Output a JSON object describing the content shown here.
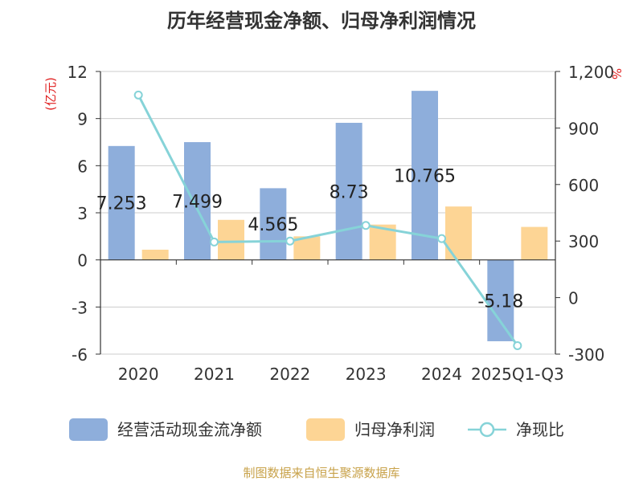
{
  "chart_data": {
    "type": "bar",
    "title": "历年经营现金净额、归母净利润情况",
    "categories": [
      "2020",
      "2021",
      "2022",
      "2023",
      "2024",
      "2025Q1-Q3"
    ],
    "series": [
      {
        "name": "经营活动现金流净额",
        "type": "bar",
        "axis": "left",
        "color": "#8eaedb",
        "values": [
          7.253,
          7.499,
          4.565,
          8.73,
          10.765,
          -5.18
        ],
        "labels": [
          "7.253",
          "7.499",
          "4.565",
          "8.73",
          "10.765",
          "-5.18"
        ]
      },
      {
        "name": "归母净利润",
        "type": "bar",
        "axis": "left",
        "color": "#fdd595",
        "values": [
          0.65,
          2.55,
          1.5,
          2.25,
          3.4,
          2.1
        ]
      },
      {
        "name": "净现比",
        "type": "line",
        "axis": "right",
        "color": "#86d3d8",
        "values": [
          1075,
          295,
          300,
          383,
          313,
          -255
        ]
      }
    ],
    "left_axis": {
      "unit": "(亿元)",
      "ylim": [
        -6,
        12
      ],
      "ticks": [
        -6,
        -3,
        0,
        3,
        6,
        9,
        12
      ],
      "tick_labels": [
        "-6",
        "-3",
        "0",
        "3",
        "6",
        "9",
        "12"
      ]
    },
    "right_axis": {
      "unit": "%",
      "ylim": [
        -300,
        1200
      ],
      "ticks": [
        -300,
        0,
        300,
        600,
        900,
        1200
      ],
      "tick_labels": [
        "-300",
        "0",
        "300",
        "600",
        "900",
        "1,200"
      ]
    },
    "legend_position": "bottom",
    "grid": true
  },
  "source": "制图数据来自恒生聚源数据库",
  "colors": {
    "title": "#333333",
    "unit": "#e02020",
    "axis": "#333333",
    "grid": "#cccccc",
    "source": "#c8a24a"
  }
}
